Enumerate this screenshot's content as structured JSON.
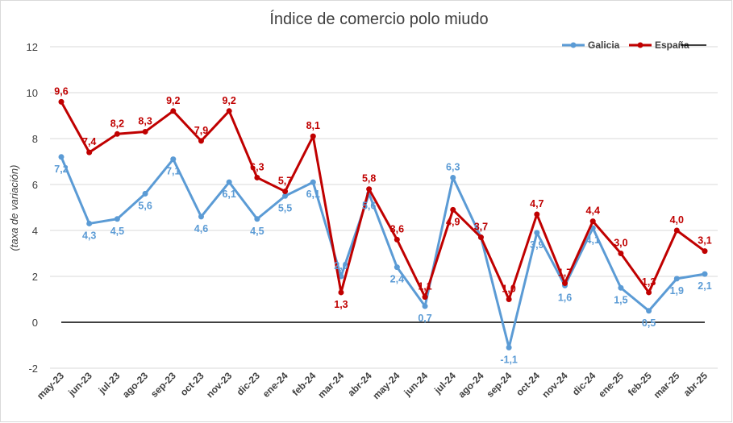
{
  "chart_data": {
    "type": "line",
    "title": "Índice de comercio polo miudo",
    "ylabel": "(taxa de variación)",
    "xlabel": "",
    "ylim": [
      -2,
      12
    ],
    "yticks": [
      -2,
      0,
      2,
      4,
      6,
      8,
      10,
      12
    ],
    "grid": true,
    "legend": "top-right",
    "categories": [
      "may-23",
      "jun-23",
      "jul-23",
      "ago-23",
      "sep-23",
      "oct-23",
      "nov-23",
      "dic-23",
      "ene-24",
      "feb-24",
      "mar-24",
      "abr-24",
      "may-24",
      "jun-24",
      "jul-24",
      "ago-24",
      "sep-24",
      "oct-24",
      "nov-24",
      "dic-24",
      "ene-25",
      "feb-25",
      "mar-25",
      "abr-25"
    ],
    "series": [
      {
        "name": "Galicia",
        "color": "#5b9bd5",
        "values": [
          7.2,
          4.3,
          4.5,
          5.6,
          7.1,
          4.6,
          6.1,
          4.5,
          5.5,
          6.1,
          2.0,
          5.6,
          2.4,
          0.7,
          6.3,
          3.7,
          -1.1,
          3.9,
          1.6,
          4.1,
          1.5,
          0.5,
          1.9,
          2.1
        ],
        "labels": [
          "7,2",
          "4,3",
          "4,5",
          "5,6",
          "7,1",
          "4,6",
          "6,1",
          "4,5",
          "5,5",
          "6,1",
          "2,0",
          "5,6",
          "2,4",
          "0,7",
          "6,3",
          "3,7",
          "-1,1",
          "3,9",
          "1,6",
          "4,1",
          "1,5",
          "0,5",
          "1,9",
          "2,1"
        ]
      },
      {
        "name": "España",
        "color": "#c00000",
        "values": [
          9.6,
          7.4,
          8.2,
          8.3,
          9.2,
          7.9,
          9.2,
          6.3,
          5.7,
          8.1,
          1.3,
          5.8,
          3.6,
          1.1,
          4.9,
          3.7,
          1.0,
          4.7,
          1.7,
          4.4,
          3.0,
          1.3,
          4.0,
          3.1
        ],
        "labels": [
          "9,6",
          "7,4",
          "8,2",
          "8,3",
          "9,2",
          "7,9",
          "9,2",
          "6,3",
          "5,7",
          "8,1",
          "1,3",
          "5,8",
          "3,6",
          "1,1",
          "4,9",
          "3,7",
          "1,0",
          "4,7",
          "1,7",
          "4,4",
          "3,0",
          "1,3",
          "4,0",
          "3,1"
        ]
      },
      {
        "name": "",
        "color": "#000000",
        "values": [
          0,
          0,
          0,
          0,
          0,
          0,
          0,
          0,
          0,
          0,
          0,
          0,
          0,
          0,
          0,
          0,
          0,
          0,
          0,
          0,
          0,
          0,
          0,
          0
        ]
      }
    ]
  }
}
